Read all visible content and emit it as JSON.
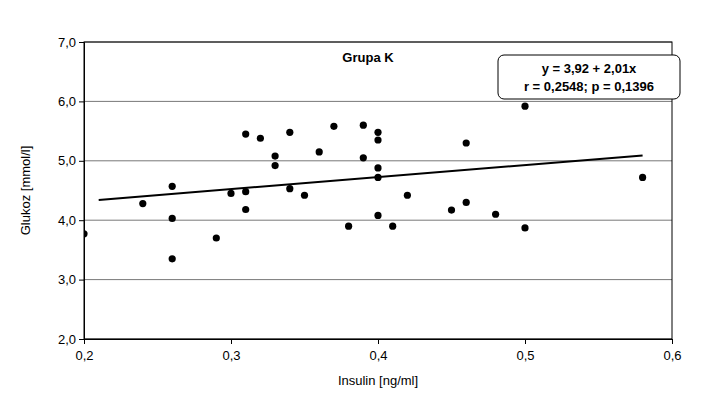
{
  "chart_data": {
    "type": "scatter",
    "title": "Grupa K",
    "x_label": "Insulin [ng/ml]",
    "y_label": "Glukoz [mmol/l]",
    "annotations": [
      "y = 3,92 + 2,01x",
      "r = 0,2548; p = 0,1396"
    ],
    "series": [
      {
        "type": "scatter",
        "color": "#000000",
        "marker": "circle",
        "x": [
          0.2,
          0.24,
          0.26,
          0.26,
          0.26,
          0.29,
          0.3,
          0.31,
          0.31,
          0.31,
          0.32,
          0.33,
          0.33,
          0.34,
          0.34,
          0.35,
          0.36,
          0.37,
          0.38,
          0.39,
          0.39,
          0.4,
          0.4,
          0.4,
          0.4,
          0.4,
          0.41,
          0.42,
          0.45,
          0.46,
          0.46,
          0.48,
          0.5,
          0.5,
          0.58
        ],
        "values": [
          3.77,
          4.28,
          4.57,
          4.03,
          3.35,
          3.7,
          4.45,
          5.45,
          4.48,
          4.18,
          5.38,
          5.08,
          4.92,
          5.48,
          4.53,
          4.42,
          5.15,
          5.58,
          3.9,
          5.6,
          5.05,
          5.48,
          5.35,
          4.88,
          4.72,
          4.08,
          3.9,
          4.42,
          4.17,
          5.3,
          4.3,
          4.1,
          5.92,
          3.87,
          4.72
        ]
      },
      {
        "type": "line",
        "color": "#000000",
        "line_style": "solid",
        "x": [
          0.21,
          0.58
        ],
        "values": [
          4.34,
          5.09
        ]
      }
    ],
    "xlim": [
      0.2,
      0.6
    ],
    "ylim": [
      2,
      7
    ],
    "xticks": [
      {
        "value": 0.2,
        "label": "0,2"
      },
      {
        "value": 0.3,
        "label": "0,3"
      },
      {
        "value": 0.4,
        "label": "0,4"
      },
      {
        "value": 0.5,
        "label": "0,5"
      },
      {
        "value": 0.6,
        "label": "0,6"
      }
    ],
    "yticks": [
      {
        "value": 2,
        "label": "2,0"
      },
      {
        "value": 3,
        "label": "3,0"
      },
      {
        "value": 4,
        "label": "4,0"
      },
      {
        "value": 5,
        "label": "5,0"
      },
      {
        "value": 6,
        "label": "6,0"
      },
      {
        "value": 7,
        "label": "7,0"
      }
    ],
    "grid": "y"
  }
}
